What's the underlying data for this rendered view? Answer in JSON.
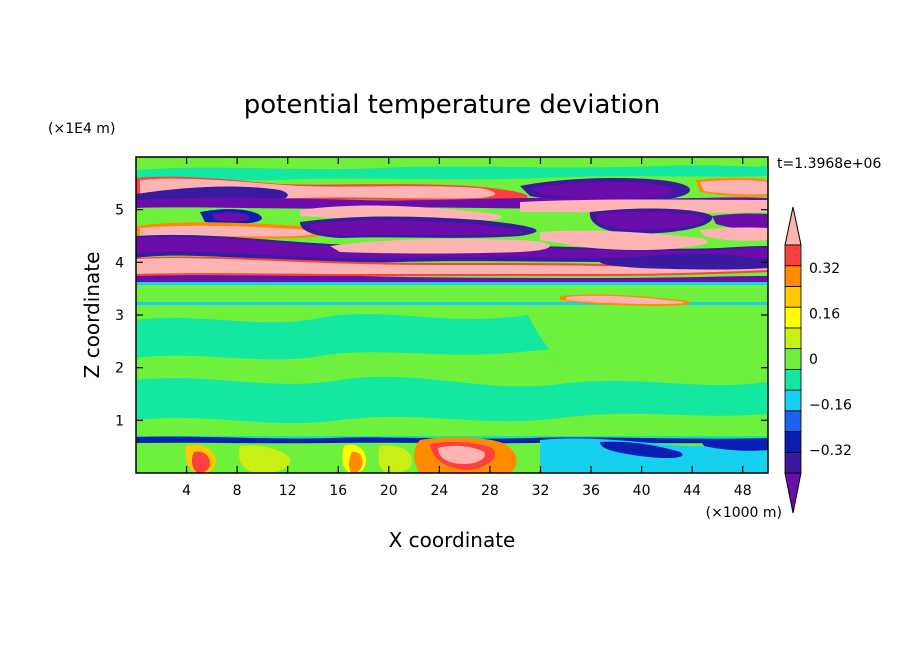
{
  "chart_data": {
    "type": "heatmap",
    "title": "potential temperature deviation",
    "xlabel": "X coordinate",
    "ylabel": "Z coordinate",
    "x_unit": "(×1000 m)",
    "y_unit": "(×1E4 m)",
    "time_label": "t=1.3968e+06",
    "xlim": [
      0,
      50
    ],
    "ylim": [
      0,
      6
    ],
    "x_ticks": [
      "4",
      "8",
      "12",
      "16",
      "20",
      "24",
      "28",
      "32",
      "36",
      "40",
      "44",
      "48"
    ],
    "x_tick_values": [
      4,
      8,
      12,
      16,
      20,
      24,
      28,
      32,
      36,
      40,
      44,
      48
    ],
    "y_ticks": [
      "1",
      "2",
      "3",
      "4",
      "5"
    ],
    "y_tick_values": [
      1,
      2,
      3,
      4,
      5
    ],
    "colorbar": {
      "levels": [
        -0.48,
        -0.4,
        -0.32,
        -0.24,
        -0.16,
        -0.08,
        0,
        0.08,
        0.16,
        0.24,
        0.32,
        0.4,
        0.48
      ],
      "labels": [
        "0.32",
        "0.16",
        "0",
        "−0.16",
        "−0.32"
      ],
      "label_values": [
        0.32,
        0.16,
        0,
        -0.16,
        -0.32
      ],
      "colors": [
        "#6a0dab",
        "#3a1a9e",
        "#0a1eb4",
        "#1b62f0",
        "#17d0f0",
        "#14e8a0",
        "#6ef03c",
        "#c8f014",
        "#ffff00",
        "#ffc800",
        "#ff8c00",
        "#ff4040",
        "#ffb4b4"
      ],
      "extend": "both"
    },
    "bands": [
      {
        "z": [
          5.6,
          5.75
        ],
        "value": 0.3
      },
      {
        "z": [
          5.05,
          5.25
        ],
        "value": -0.4
      },
      {
        "z": [
          4.45,
          4.75
        ],
        "value": 0.4
      },
      {
        "z": [
          4.0,
          4.4
        ],
        "value": -0.4
      },
      {
        "z": [
          3.75,
          4.0
        ],
        "value": 0.4
      },
      {
        "z": [
          3.6,
          3.72
        ],
        "value": -0.4
      },
      {
        "z": [
          0.6,
          0.68
        ],
        "value": -0.35
      }
    ]
  }
}
